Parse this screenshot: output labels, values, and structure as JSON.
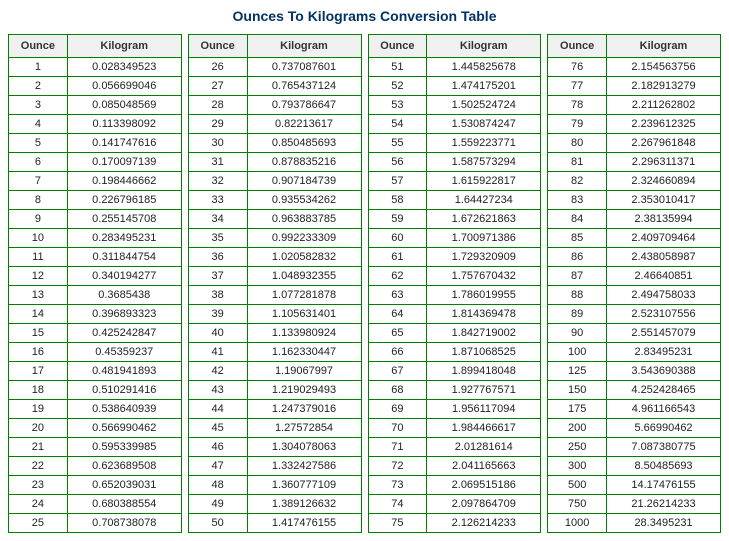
{
  "title": "Ounces To Kilograms Conversion Table",
  "header_ounce": "Ounce",
  "header_kg": "Kilogram",
  "colors": {
    "title": "#003366",
    "border": "#008000",
    "header_bg": "#f0f0f0",
    "cell_text": "#222222",
    "background": "#ffffff"
  },
  "columns": [
    {
      "rows": [
        {
          "oz": "1",
          "kg": "0.028349523"
        },
        {
          "oz": "2",
          "kg": "0.056699046"
        },
        {
          "oz": "3",
          "kg": "0.085048569"
        },
        {
          "oz": "4",
          "kg": "0.113398092"
        },
        {
          "oz": "5",
          "kg": "0.141747616"
        },
        {
          "oz": "6",
          "kg": "0.170097139"
        },
        {
          "oz": "7",
          "kg": "0.198446662"
        },
        {
          "oz": "8",
          "kg": "0.226796185"
        },
        {
          "oz": "9",
          "kg": "0.255145708"
        },
        {
          "oz": "10",
          "kg": "0.283495231"
        },
        {
          "oz": "11",
          "kg": "0.311844754"
        },
        {
          "oz": "12",
          "kg": "0.340194277"
        },
        {
          "oz": "13",
          "kg": "0.3685438"
        },
        {
          "oz": "14",
          "kg": "0.396893323"
        },
        {
          "oz": "15",
          "kg": "0.425242847"
        },
        {
          "oz": "16",
          "kg": "0.45359237"
        },
        {
          "oz": "17",
          "kg": "0.481941893"
        },
        {
          "oz": "18",
          "kg": "0.510291416"
        },
        {
          "oz": "19",
          "kg": "0.538640939"
        },
        {
          "oz": "20",
          "kg": "0.566990462"
        },
        {
          "oz": "21",
          "kg": "0.595339985"
        },
        {
          "oz": "22",
          "kg": "0.623689508"
        },
        {
          "oz": "23",
          "kg": "0.652039031"
        },
        {
          "oz": "24",
          "kg": "0.680388554"
        },
        {
          "oz": "25",
          "kg": "0.708738078"
        }
      ]
    },
    {
      "rows": [
        {
          "oz": "26",
          "kg": "0.737087601"
        },
        {
          "oz": "27",
          "kg": "0.765437124"
        },
        {
          "oz": "28",
          "kg": "0.793786647"
        },
        {
          "oz": "29",
          "kg": "0.82213617"
        },
        {
          "oz": "30",
          "kg": "0.850485693"
        },
        {
          "oz": "31",
          "kg": "0.878835216"
        },
        {
          "oz": "32",
          "kg": "0.907184739"
        },
        {
          "oz": "33",
          "kg": "0.935534262"
        },
        {
          "oz": "34",
          "kg": "0.963883785"
        },
        {
          "oz": "35",
          "kg": "0.992233309"
        },
        {
          "oz": "36",
          "kg": "1.020582832"
        },
        {
          "oz": "37",
          "kg": "1.048932355"
        },
        {
          "oz": "38",
          "kg": "1.077281878"
        },
        {
          "oz": "39",
          "kg": "1.105631401"
        },
        {
          "oz": "40",
          "kg": "1.133980924"
        },
        {
          "oz": "41",
          "kg": "1.162330447"
        },
        {
          "oz": "42",
          "kg": "1.19067997"
        },
        {
          "oz": "43",
          "kg": "1.219029493"
        },
        {
          "oz": "44",
          "kg": "1.247379016"
        },
        {
          "oz": "45",
          "kg": "1.27572854"
        },
        {
          "oz": "46",
          "kg": "1.304078063"
        },
        {
          "oz": "47",
          "kg": "1.332427586"
        },
        {
          "oz": "48",
          "kg": "1.360777109"
        },
        {
          "oz": "49",
          "kg": "1.389126632"
        },
        {
          "oz": "50",
          "kg": "1.417476155"
        }
      ]
    },
    {
      "rows": [
        {
          "oz": "51",
          "kg": "1.445825678"
        },
        {
          "oz": "52",
          "kg": "1.474175201"
        },
        {
          "oz": "53",
          "kg": "1.502524724"
        },
        {
          "oz": "54",
          "kg": "1.530874247"
        },
        {
          "oz": "55",
          "kg": "1.559223771"
        },
        {
          "oz": "56",
          "kg": "1.587573294"
        },
        {
          "oz": "57",
          "kg": "1.615922817"
        },
        {
          "oz": "58",
          "kg": "1.64427234"
        },
        {
          "oz": "59",
          "kg": "1.672621863"
        },
        {
          "oz": "60",
          "kg": "1.700971386"
        },
        {
          "oz": "61",
          "kg": "1.729320909"
        },
        {
          "oz": "62",
          "kg": "1.757670432"
        },
        {
          "oz": "63",
          "kg": "1.786019955"
        },
        {
          "oz": "64",
          "kg": "1.814369478"
        },
        {
          "oz": "65",
          "kg": "1.842719002"
        },
        {
          "oz": "66",
          "kg": "1.871068525"
        },
        {
          "oz": "67",
          "kg": "1.899418048"
        },
        {
          "oz": "68",
          "kg": "1.927767571"
        },
        {
          "oz": "69",
          "kg": "1.956117094"
        },
        {
          "oz": "70",
          "kg": "1.984466617"
        },
        {
          "oz": "71",
          "kg": "2.01281614"
        },
        {
          "oz": "72",
          "kg": "2.041165663"
        },
        {
          "oz": "73",
          "kg": "2.069515186"
        },
        {
          "oz": "74",
          "kg": "2.097864709"
        },
        {
          "oz": "75",
          "kg": "2.126214233"
        }
      ]
    },
    {
      "rows": [
        {
          "oz": "76",
          "kg": "2.154563756"
        },
        {
          "oz": "77",
          "kg": "2.182913279"
        },
        {
          "oz": "78",
          "kg": "2.211262802"
        },
        {
          "oz": "79",
          "kg": "2.239612325"
        },
        {
          "oz": "80",
          "kg": "2.267961848"
        },
        {
          "oz": "81",
          "kg": "2.296311371"
        },
        {
          "oz": "82",
          "kg": "2.324660894"
        },
        {
          "oz": "83",
          "kg": "2.353010417"
        },
        {
          "oz": "84",
          "kg": "2.38135994"
        },
        {
          "oz": "85",
          "kg": "2.409709464"
        },
        {
          "oz": "86",
          "kg": "2.438058987"
        },
        {
          "oz": "87",
          "kg": "2.46640851"
        },
        {
          "oz": "88",
          "kg": "2.494758033"
        },
        {
          "oz": "89",
          "kg": "2.523107556"
        },
        {
          "oz": "90",
          "kg": "2.551457079"
        },
        {
          "oz": "100",
          "kg": "2.83495231"
        },
        {
          "oz": "125",
          "kg": "3.543690388"
        },
        {
          "oz": "150",
          "kg": "4.252428465"
        },
        {
          "oz": "175",
          "kg": "4.961166543"
        },
        {
          "oz": "200",
          "kg": "5.66990462"
        },
        {
          "oz": "250",
          "kg": "7.087380775"
        },
        {
          "oz": "300",
          "kg": "8.50485693"
        },
        {
          "oz": "500",
          "kg": "14.17476155"
        },
        {
          "oz": "750",
          "kg": "21.26214233"
        },
        {
          "oz": "1000",
          "kg": "28.3495231"
        }
      ]
    }
  ]
}
